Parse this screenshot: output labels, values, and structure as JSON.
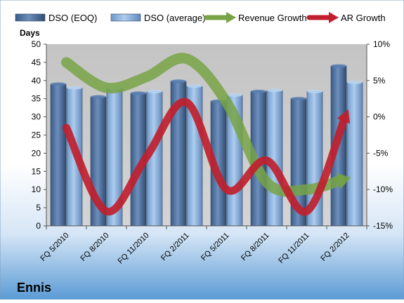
{
  "chart_data": {
    "type": "bar",
    "title": "Ennis",
    "ylabel": "Days",
    "categories": [
      "FQ 5/2010",
      "FQ 8/2010",
      "FQ 11/2010",
      "FQ 2/2011",
      "FQ 5/2011",
      "FQ 8/2011",
      "FQ 11/2011",
      "FQ 2/2012"
    ],
    "series": [
      {
        "name": "DSO (EOQ)",
        "type": "bar",
        "axis": "left",
        "color": "#4a6e9e",
        "values": [
          39,
          35.5,
          36.5,
          39.8,
          34.3,
          37,
          35,
          44
        ]
      },
      {
        "name": "DSO (average)",
        "type": "bar",
        "axis": "left",
        "color": "#8cb3df",
        "values": [
          38,
          38,
          37,
          38.5,
          36,
          37.3,
          37,
          39.5
        ]
      },
      {
        "name": "Revenue Growth",
        "type": "line",
        "axis": "right",
        "color": "#77a345",
        "values": [
          7.5,
          4,
          5.5,
          8,
          2,
          -9,
          -10,
          -8.5
        ]
      },
      {
        "name": "AR Growth",
        "type": "line",
        "axis": "right",
        "color": "#c0202e",
        "values": [
          -1.5,
          -13,
          -5.5,
          2,
          -10,
          -6,
          -13,
          0.5
        ]
      }
    ],
    "ylim": [
      0,
      50
    ],
    "yticks": [
      "0",
      "5",
      "10",
      "15",
      "20",
      "25",
      "30",
      "35",
      "40",
      "45",
      "50"
    ],
    "y2lim": [
      -15,
      10
    ],
    "y2ticks": [
      "-15%",
      "-10%",
      "-5%",
      "0%",
      "5%",
      "10%"
    ],
    "legend_position": "top",
    "grid": false,
    "plot_background": "#c0c0c0",
    "page_background_top": "#ffffff",
    "page_background_bottom": "#5b9bd5"
  }
}
